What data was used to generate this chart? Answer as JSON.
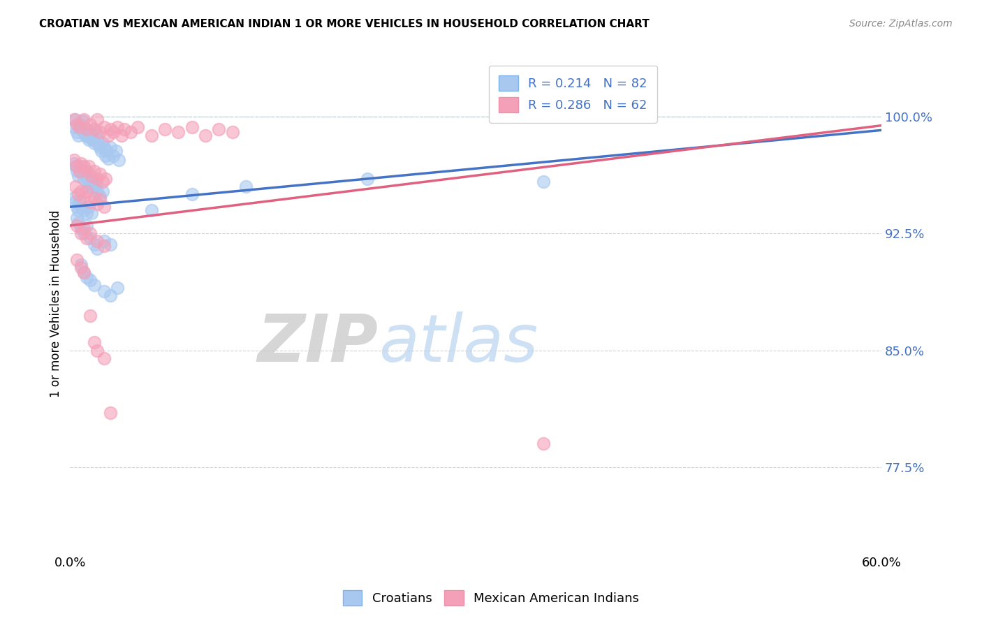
{
  "title": "CROATIAN VS MEXICAN AMERICAN INDIAN 1 OR MORE VEHICLES IN HOUSEHOLD CORRELATION CHART",
  "source": "Source: ZipAtlas.com",
  "ylabel": "1 or more Vehicles in Household",
  "ytick_labels": [
    "77.5%",
    "85.0%",
    "92.5%",
    "100.0%"
  ],
  "ytick_values": [
    0.775,
    0.85,
    0.925,
    1.0
  ],
  "xlim": [
    0.0,
    0.6
  ],
  "ylim": [
    0.72,
    1.04
  ],
  "croatian_color": "#A8C8F0",
  "mexican_color": "#F4A0B8",
  "trendline_croatian_color": "#4472C4",
  "trendline_mexican_color": "#E06080",
  "watermark_zip_color": "#C8C8C8",
  "watermark_atlas_color": "#B8D4F0",
  "croatian_intercept": 0.942,
  "croatian_slope": 0.082,
  "mexican_intercept": 0.93,
  "mexican_slope": 0.107,
  "croatian_points": [
    [
      0.003,
      0.993
    ],
    [
      0.004,
      0.998
    ],
    [
      0.005,
      0.99
    ],
    [
      0.006,
      0.988
    ],
    [
      0.007,
      0.995
    ],
    [
      0.008,
      0.992
    ],
    [
      0.009,
      0.997
    ],
    [
      0.01,
      0.99
    ],
    [
      0.011,
      0.988
    ],
    [
      0.012,
      0.992
    ],
    [
      0.013,
      0.987
    ],
    [
      0.014,
      0.985
    ],
    [
      0.015,
      0.99
    ],
    [
      0.016,
      0.988
    ],
    [
      0.017,
      0.985
    ],
    [
      0.018,
      0.983
    ],
    [
      0.019,
      0.99
    ],
    [
      0.02,
      0.985
    ],
    [
      0.021,
      0.982
    ],
    [
      0.022,
      0.98
    ],
    [
      0.023,
      0.978
    ],
    [
      0.024,
      0.983
    ],
    [
      0.025,
      0.98
    ],
    [
      0.026,
      0.975
    ],
    [
      0.027,
      0.978
    ],
    [
      0.028,
      0.973
    ],
    [
      0.03,
      0.98
    ],
    [
      0.032,
      0.975
    ],
    [
      0.034,
      0.978
    ],
    [
      0.036,
      0.972
    ],
    [
      0.003,
      0.97
    ],
    [
      0.004,
      0.968
    ],
    [
      0.005,
      0.965
    ],
    [
      0.006,
      0.962
    ],
    [
      0.007,
      0.968
    ],
    [
      0.008,
      0.965
    ],
    [
      0.009,
      0.963
    ],
    [
      0.01,
      0.96
    ],
    [
      0.011,
      0.965
    ],
    [
      0.012,
      0.962
    ],
    [
      0.013,
      0.958
    ],
    [
      0.014,
      0.955
    ],
    [
      0.015,
      0.96
    ],
    [
      0.016,
      0.957
    ],
    [
      0.017,
      0.954
    ],
    [
      0.018,
      0.958
    ],
    [
      0.019,
      0.955
    ],
    [
      0.02,
      0.952
    ],
    [
      0.022,
      0.949
    ],
    [
      0.024,
      0.952
    ],
    [
      0.003,
      0.948
    ],
    [
      0.004,
      0.945
    ],
    [
      0.005,
      0.942
    ],
    [
      0.006,
      0.94
    ],
    [
      0.007,
      0.945
    ],
    [
      0.008,
      0.942
    ],
    [
      0.01,
      0.94
    ],
    [
      0.012,
      0.938
    ],
    [
      0.014,
      0.942
    ],
    [
      0.016,
      0.938
    ],
    [
      0.005,
      0.935
    ],
    [
      0.006,
      0.932
    ],
    [
      0.008,
      0.928
    ],
    [
      0.01,
      0.925
    ],
    [
      0.012,
      0.93
    ],
    [
      0.015,
      0.922
    ],
    [
      0.018,
      0.918
    ],
    [
      0.02,
      0.915
    ],
    [
      0.025,
      0.92
    ],
    [
      0.03,
      0.918
    ],
    [
      0.008,
      0.905
    ],
    [
      0.01,
      0.9
    ],
    [
      0.012,
      0.897
    ],
    [
      0.015,
      0.895
    ],
    [
      0.018,
      0.892
    ],
    [
      0.025,
      0.888
    ],
    [
      0.03,
      0.885
    ],
    [
      0.035,
      0.89
    ],
    [
      0.06,
      0.94
    ],
    [
      0.09,
      0.95
    ],
    [
      0.13,
      0.955
    ],
    [
      0.22,
      0.96
    ],
    [
      0.35,
      0.958
    ]
  ],
  "mexican_points": [
    [
      0.003,
      0.998
    ],
    [
      0.005,
      0.995
    ],
    [
      0.007,
      0.993
    ],
    [
      0.01,
      0.998
    ],
    [
      0.012,
      0.992
    ],
    [
      0.015,
      0.995
    ],
    [
      0.018,
      0.992
    ],
    [
      0.02,
      0.998
    ],
    [
      0.022,
      0.99
    ],
    [
      0.025,
      0.993
    ],
    [
      0.028,
      0.988
    ],
    [
      0.03,
      0.992
    ],
    [
      0.032,
      0.99
    ],
    [
      0.035,
      0.993
    ],
    [
      0.038,
      0.988
    ],
    [
      0.04,
      0.992
    ],
    [
      0.045,
      0.99
    ],
    [
      0.05,
      0.993
    ],
    [
      0.06,
      0.988
    ],
    [
      0.07,
      0.992
    ],
    [
      0.08,
      0.99
    ],
    [
      0.09,
      0.993
    ],
    [
      0.1,
      0.988
    ],
    [
      0.11,
      0.992
    ],
    [
      0.12,
      0.99
    ],
    [
      0.003,
      0.972
    ],
    [
      0.005,
      0.968
    ],
    [
      0.007,
      0.965
    ],
    [
      0.008,
      0.97
    ],
    [
      0.01,
      0.968
    ],
    [
      0.012,
      0.965
    ],
    [
      0.014,
      0.968
    ],
    [
      0.016,
      0.962
    ],
    [
      0.018,
      0.965
    ],
    [
      0.02,
      0.96
    ],
    [
      0.022,
      0.963
    ],
    [
      0.024,
      0.958
    ],
    [
      0.026,
      0.96
    ],
    [
      0.004,
      0.955
    ],
    [
      0.006,
      0.95
    ],
    [
      0.008,
      0.952
    ],
    [
      0.01,
      0.948
    ],
    [
      0.012,
      0.952
    ],
    [
      0.015,
      0.945
    ],
    [
      0.018,
      0.948
    ],
    [
      0.02,
      0.944
    ],
    [
      0.022,
      0.947
    ],
    [
      0.025,
      0.942
    ],
    [
      0.005,
      0.93
    ],
    [
      0.008,
      0.925
    ],
    [
      0.01,
      0.928
    ],
    [
      0.012,
      0.922
    ],
    [
      0.015,
      0.925
    ],
    [
      0.02,
      0.92
    ],
    [
      0.025,
      0.917
    ],
    [
      0.005,
      0.908
    ],
    [
      0.008,
      0.903
    ],
    [
      0.01,
      0.9
    ],
    [
      0.015,
      0.872
    ],
    [
      0.018,
      0.855
    ],
    [
      0.02,
      0.85
    ],
    [
      0.025,
      0.845
    ],
    [
      0.03,
      0.81
    ],
    [
      0.35,
      0.79
    ]
  ]
}
